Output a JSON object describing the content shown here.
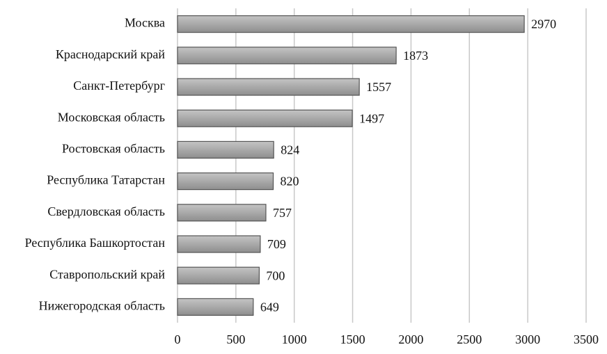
{
  "chart_data": {
    "type": "bar",
    "orientation": "horizontal",
    "categories": [
      "Москва",
      "Краснодарский край",
      "Санкт-Петербург",
      "Московская область",
      "Ростовская область",
      "Республика Татарстан",
      "Свердловская область",
      "Республика Башкортостан",
      "Ставропольский край",
      "Нижегородская область"
    ],
    "values": [
      2970,
      1873,
      1557,
      1497,
      824,
      820,
      757,
      709,
      700,
      649
    ],
    "color": "#a0a0a0",
    "xlim": [
      0,
      3500
    ],
    "xticks": [
      0,
      500,
      1000,
      1500,
      2000,
      2500,
      3000,
      3500
    ],
    "grid": true
  }
}
